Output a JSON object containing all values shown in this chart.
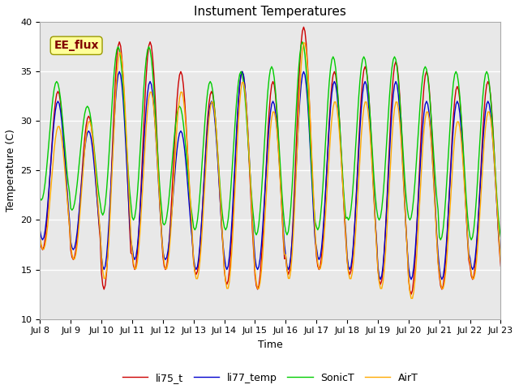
{
  "title": "Instument Temperatures",
  "xlabel": "Time",
  "ylabel": "Temperature (C)",
  "ylim": [
    10,
    40
  ],
  "n_days": 15,
  "x_tick_labels": [
    "Jul 8",
    "Jul 9",
    "Jul 10",
    "Jul 11",
    "Jul 12",
    "Jul 13",
    "Jul 14",
    "Jul 15",
    "Jul 16",
    "Jul 17",
    "Jul 18",
    "Jul 19",
    "Jul 20",
    "Jul 21",
    "Jul 22",
    "Jul 23"
  ],
  "yticks": [
    10,
    15,
    20,
    25,
    30,
    35,
    40
  ],
  "colors": {
    "li75_t": "#cc0000",
    "li77_temp": "#0000cc",
    "SonicT": "#00cc00",
    "AirT": "#ffaa00"
  },
  "annotation_text": "EE_flux",
  "annotation_color": "#800000",
  "annotation_bg": "#ffff99",
  "plot_bg": "#e8e8e8",
  "fig_bg": "#ffffff",
  "title_fontsize": 11,
  "axis_fontsize": 9,
  "tick_fontsize": 8,
  "legend_fontsize": 9,
  "li75_mins": [
    17.0,
    16.0,
    13.0,
    15.0,
    15.0,
    14.5,
    13.5,
    13.0,
    14.5,
    15.0,
    14.5,
    13.5,
    12.5,
    13.0,
    14.0
  ],
  "li75_maxs": [
    33.0,
    30.5,
    38.0,
    38.0,
    35.0,
    33.0,
    35.0,
    34.0,
    39.5,
    35.0,
    35.5,
    36.0,
    35.0,
    33.5,
    34.0
  ],
  "li77_mins": [
    18.0,
    17.0,
    15.0,
    16.0,
    16.0,
    15.0,
    15.0,
    15.0,
    15.0,
    16.0,
    15.0,
    14.0,
    14.0,
    14.0,
    15.0
  ],
  "li77_maxs": [
    32.0,
    29.0,
    35.0,
    34.0,
    29.0,
    32.0,
    35.0,
    32.0,
    35.0,
    34.0,
    34.0,
    34.0,
    32.0,
    32.0,
    32.0
  ],
  "sonic_mins": [
    22.0,
    21.0,
    20.5,
    20.0,
    19.5,
    19.0,
    19.0,
    18.5,
    18.5,
    19.0,
    20.0,
    20.0,
    20.0,
    18.0,
    18.0
  ],
  "sonic_maxs": [
    34.0,
    31.5,
    37.5,
    37.5,
    31.5,
    34.0,
    35.0,
    35.5,
    38.0,
    36.5,
    36.5,
    36.5,
    35.5,
    35.0,
    35.0
  ],
  "air_mins": [
    17.0,
    16.0,
    14.0,
    15.0,
    15.0,
    14.0,
    13.0,
    13.0,
    14.0,
    15.0,
    14.0,
    13.0,
    12.0,
    13.0,
    14.0
  ],
  "air_maxs": [
    29.5,
    30.0,
    37.0,
    33.0,
    33.0,
    32.0,
    34.0,
    31.0,
    38.0,
    32.0,
    32.0,
    32.0,
    31.0,
    30.0,
    31.0
  ]
}
